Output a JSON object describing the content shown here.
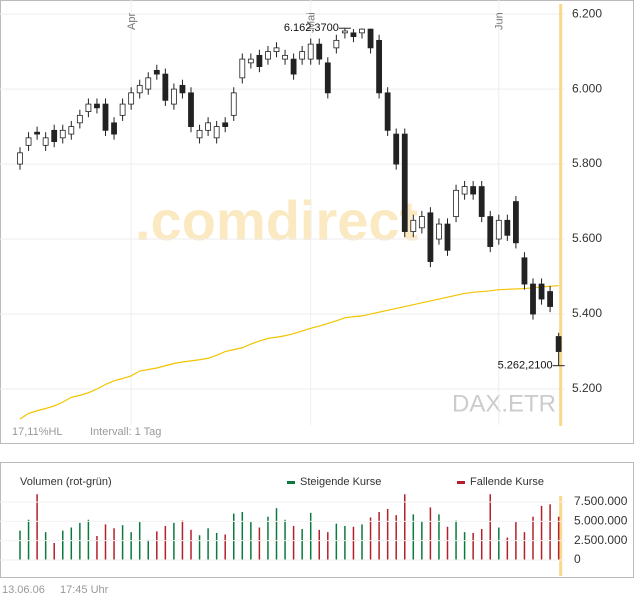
{
  "chart_data": [
    {
      "type": "candlestick",
      "categories": [
        null,
        null,
        null,
        null,
        null,
        null,
        null,
        null,
        null,
        null,
        null,
        null,
        null,
        "Apr",
        null,
        null,
        null,
        null,
        null,
        null,
        null,
        null,
        null,
        null,
        null,
        null,
        null,
        null,
        null,
        null,
        null,
        null,
        null,
        null,
        "Mai",
        null,
        null,
        null,
        null,
        null,
        null,
        null,
        null,
        null,
        null,
        null,
        null,
        null,
        null,
        null,
        null,
        null,
        null,
        null,
        null,
        null,
        "Jun",
        null,
        null,
        null,
        null,
        null,
        null,
        null
      ],
      "open": [
        5800,
        5850,
        5885,
        5850,
        5890,
        5870,
        5880,
        5910,
        5940,
        5960,
        5960,
        5910,
        5930,
        5960,
        5990,
        6000,
        6050,
        6040,
        5960,
        6010,
        5990,
        5870,
        5890,
        5870,
        5910,
        5930,
        6030,
        6070,
        6090,
        6080,
        6100,
        6080,
        6080,
        6080,
        6080,
        6120,
        6070,
        6110,
        6150,
        6150,
        6150,
        6160,
        6130,
        5990,
        5880,
        5880,
        5620,
        5630,
        5670,
        5600,
        5640,
        5660,
        5720,
        5740,
        5740,
        5660,
        5600,
        5650,
        5700,
        5550,
        5480,
        5480,
        5460,
        5340
      ],
      "high": [
        5845,
        5885,
        5900,
        5885,
        5905,
        5905,
        5915,
        5945,
        5975,
        5975,
        5975,
        5925,
        5975,
        6005,
        6025,
        6045,
        6065,
        6055,
        6015,
        6025,
        6005,
        5905,
        5925,
        5915,
        5925,
        6005,
        6095,
        6095,
        6105,
        6115,
        6125,
        6105,
        6095,
        6115,
        6135,
        6135,
        6085,
        6145,
        6162.37,
        6160,
        6162,
        6161,
        6145,
        6005,
        5895,
        5895,
        5665,
        5675,
        5685,
        5655,
        5655,
        5745,
        5755,
        5755,
        5755,
        5675,
        5665,
        5665,
        5715,
        5565,
        5495,
        5495,
        5475,
        5350
      ],
      "low": [
        5785,
        5835,
        5865,
        5835,
        5845,
        5855,
        5865,
        5895,
        5925,
        5935,
        5875,
        5865,
        5915,
        5945,
        5975,
        5985,
        6025,
        5955,
        5945,
        5975,
        5885,
        5855,
        5875,
        5855,
        5885,
        5915,
        6015,
        6055,
        6045,
        6065,
        6085,
        6065,
        6025,
        6065,
        6065,
        6065,
        5975,
        6095,
        6135,
        6125,
        6135,
        6095,
        5975,
        5875,
        5785,
        5605,
        5605,
        5615,
        5525,
        5585,
        5555,
        5645,
        5705,
        5705,
        5645,
        5565,
        5585,
        5595,
        5575,
        5465,
        5385,
        5425,
        5405,
        5262.21
      ],
      "close": [
        5830,
        5870,
        5880,
        5870,
        5860,
        5890,
        5900,
        5930,
        5960,
        5950,
        5890,
        5880,
        5960,
        5990,
        6010,
        6030,
        6040,
        5970,
        6000,
        5990,
        5900,
        5890,
        5910,
        5900,
        5900,
        5990,
        6080,
        6080,
        6060,
        6100,
        6110,
        6090,
        6040,
        6100,
        6120,
        6080,
        5990,
        6130,
        6155,
        6140,
        6160,
        6110,
        5990,
        5890,
        5800,
        5620,
        5650,
        5660,
        5540,
        5640,
        5570,
        5730,
        5740,
        5720,
        5660,
        5580,
        5650,
        5610,
        5590,
        5480,
        5400,
        5440,
        5420,
        5300
      ],
      "moving_average": {
        "color": "#f2c400",
        "values": [
          5120,
          5135,
          5142,
          5148,
          5155,
          5165,
          5178,
          5183,
          5190,
          5200,
          5212,
          5222,
          5228,
          5235,
          5248,
          5252,
          5256,
          5262,
          5268,
          5272,
          5275,
          5278,
          5282,
          5290,
          5300,
          5305,
          5310,
          5320,
          5328,
          5335,
          5338,
          5342,
          5348,
          5355,
          5362,
          5368,
          5375,
          5382,
          5390,
          5393,
          5395,
          5400,
          5405,
          5410,
          5415,
          5420,
          5425,
          5430,
          5435,
          5440,
          5445,
          5450,
          5455,
          5458,
          5460,
          5462,
          5465,
          5466,
          5467,
          5468,
          5470,
          5472,
          5474,
          5476
        ]
      },
      "ylim": [
        5104,
        6227
      ],
      "yticks": [
        {
          "value": 5200,
          "label": "5.200"
        },
        {
          "value": 5400,
          "label": "5.400"
        },
        {
          "value": 5600,
          "label": "5.600"
        },
        {
          "value": 5800,
          "label": "5.800"
        },
        {
          "value": 6000,
          "label": "6.000"
        },
        {
          "value": 6200,
          "label": "6.200"
        }
      ],
      "annotations": [
        {
          "value": 6162.37,
          "label": "6.162,3700"
        },
        {
          "value": 5262.21,
          "label": "5.262,2100"
        }
      ],
      "info_left": "17,11%HL",
      "interval": "Intervall: 1 Tag",
      "symbol": "DAX.ETR",
      "watermark": ".comdirect",
      "grid": true
    },
    {
      "type": "bar",
      "label": "Volumen (rot-grün)",
      "legend": [
        {
          "name": "Steigende Kurse",
          "color": "#0b7a3e"
        },
        {
          "name": "Fallende Kurse",
          "color": "#b3202a"
        }
      ],
      "values": [
        3800000,
        5200000,
        8500000,
        3600000,
        2200000,
        3800000,
        4200000,
        4800000,
        5200000,
        3100000,
        4600000,
        4100000,
        4500000,
        3600000,
        4900000,
        2600000,
        3700000,
        4400000,
        4800000,
        5100000,
        3900000,
        3200000,
        4100000,
        3500000,
        3300000,
        6000000,
        6200000,
        4900000,
        4200000,
        5600000,
        6700000,
        5200000,
        4400000,
        4000000,
        6100000,
        3900000,
        3600000,
        4700000,
        4400000,
        4300000,
        4600000,
        5500000,
        6200000,
        6600000,
        5800000,
        8500000,
        5900000,
        5000000,
        6800000,
        5900000,
        4300000,
        5100000,
        3600000,
        3500000,
        4000000,
        8500000,
        4200000,
        2900000,
        4900000,
        3600000,
        5600000,
        7000000,
        7200000,
        5600000
      ],
      "ylim": [
        0,
        8700000
      ],
      "yticks": [
        {
          "value": 0,
          "label": "0"
        },
        {
          "value": 2500000,
          "label": "2.500.000"
        },
        {
          "value": 5000000,
          "label": "5.000.000"
        },
        {
          "value": 7500000,
          "label": "7.500.000"
        }
      ]
    }
  ],
  "footer": {
    "date": "13.06.06",
    "time": "17:45 Uhr"
  }
}
